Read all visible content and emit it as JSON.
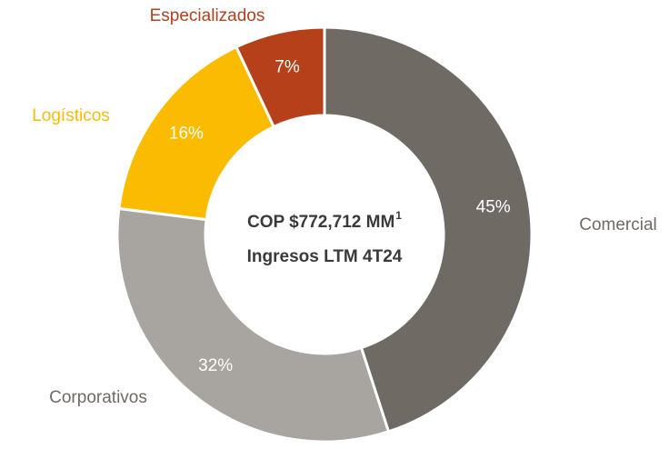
{
  "chart_data": {
    "type": "donut",
    "categories": [
      "Comercial",
      "Corporativos",
      "Logísticos",
      "Especializados"
    ],
    "values": [
      45,
      32,
      16,
      7
    ],
    "value_labels": [
      "45%",
      "32%",
      "16%",
      "7%"
    ],
    "colors": [
      "#6f6a63",
      "#a8a49f",
      "#fbbb00",
      "#b5401a"
    ],
    "label_colors": [
      "#6f6a63",
      "#6f6a63",
      "#fbbb00",
      "#b5401a"
    ],
    "center_text": [
      "COP $772,712 MM",
      "Ingresos LTM  4T24"
    ],
    "center_superscript": "1"
  }
}
